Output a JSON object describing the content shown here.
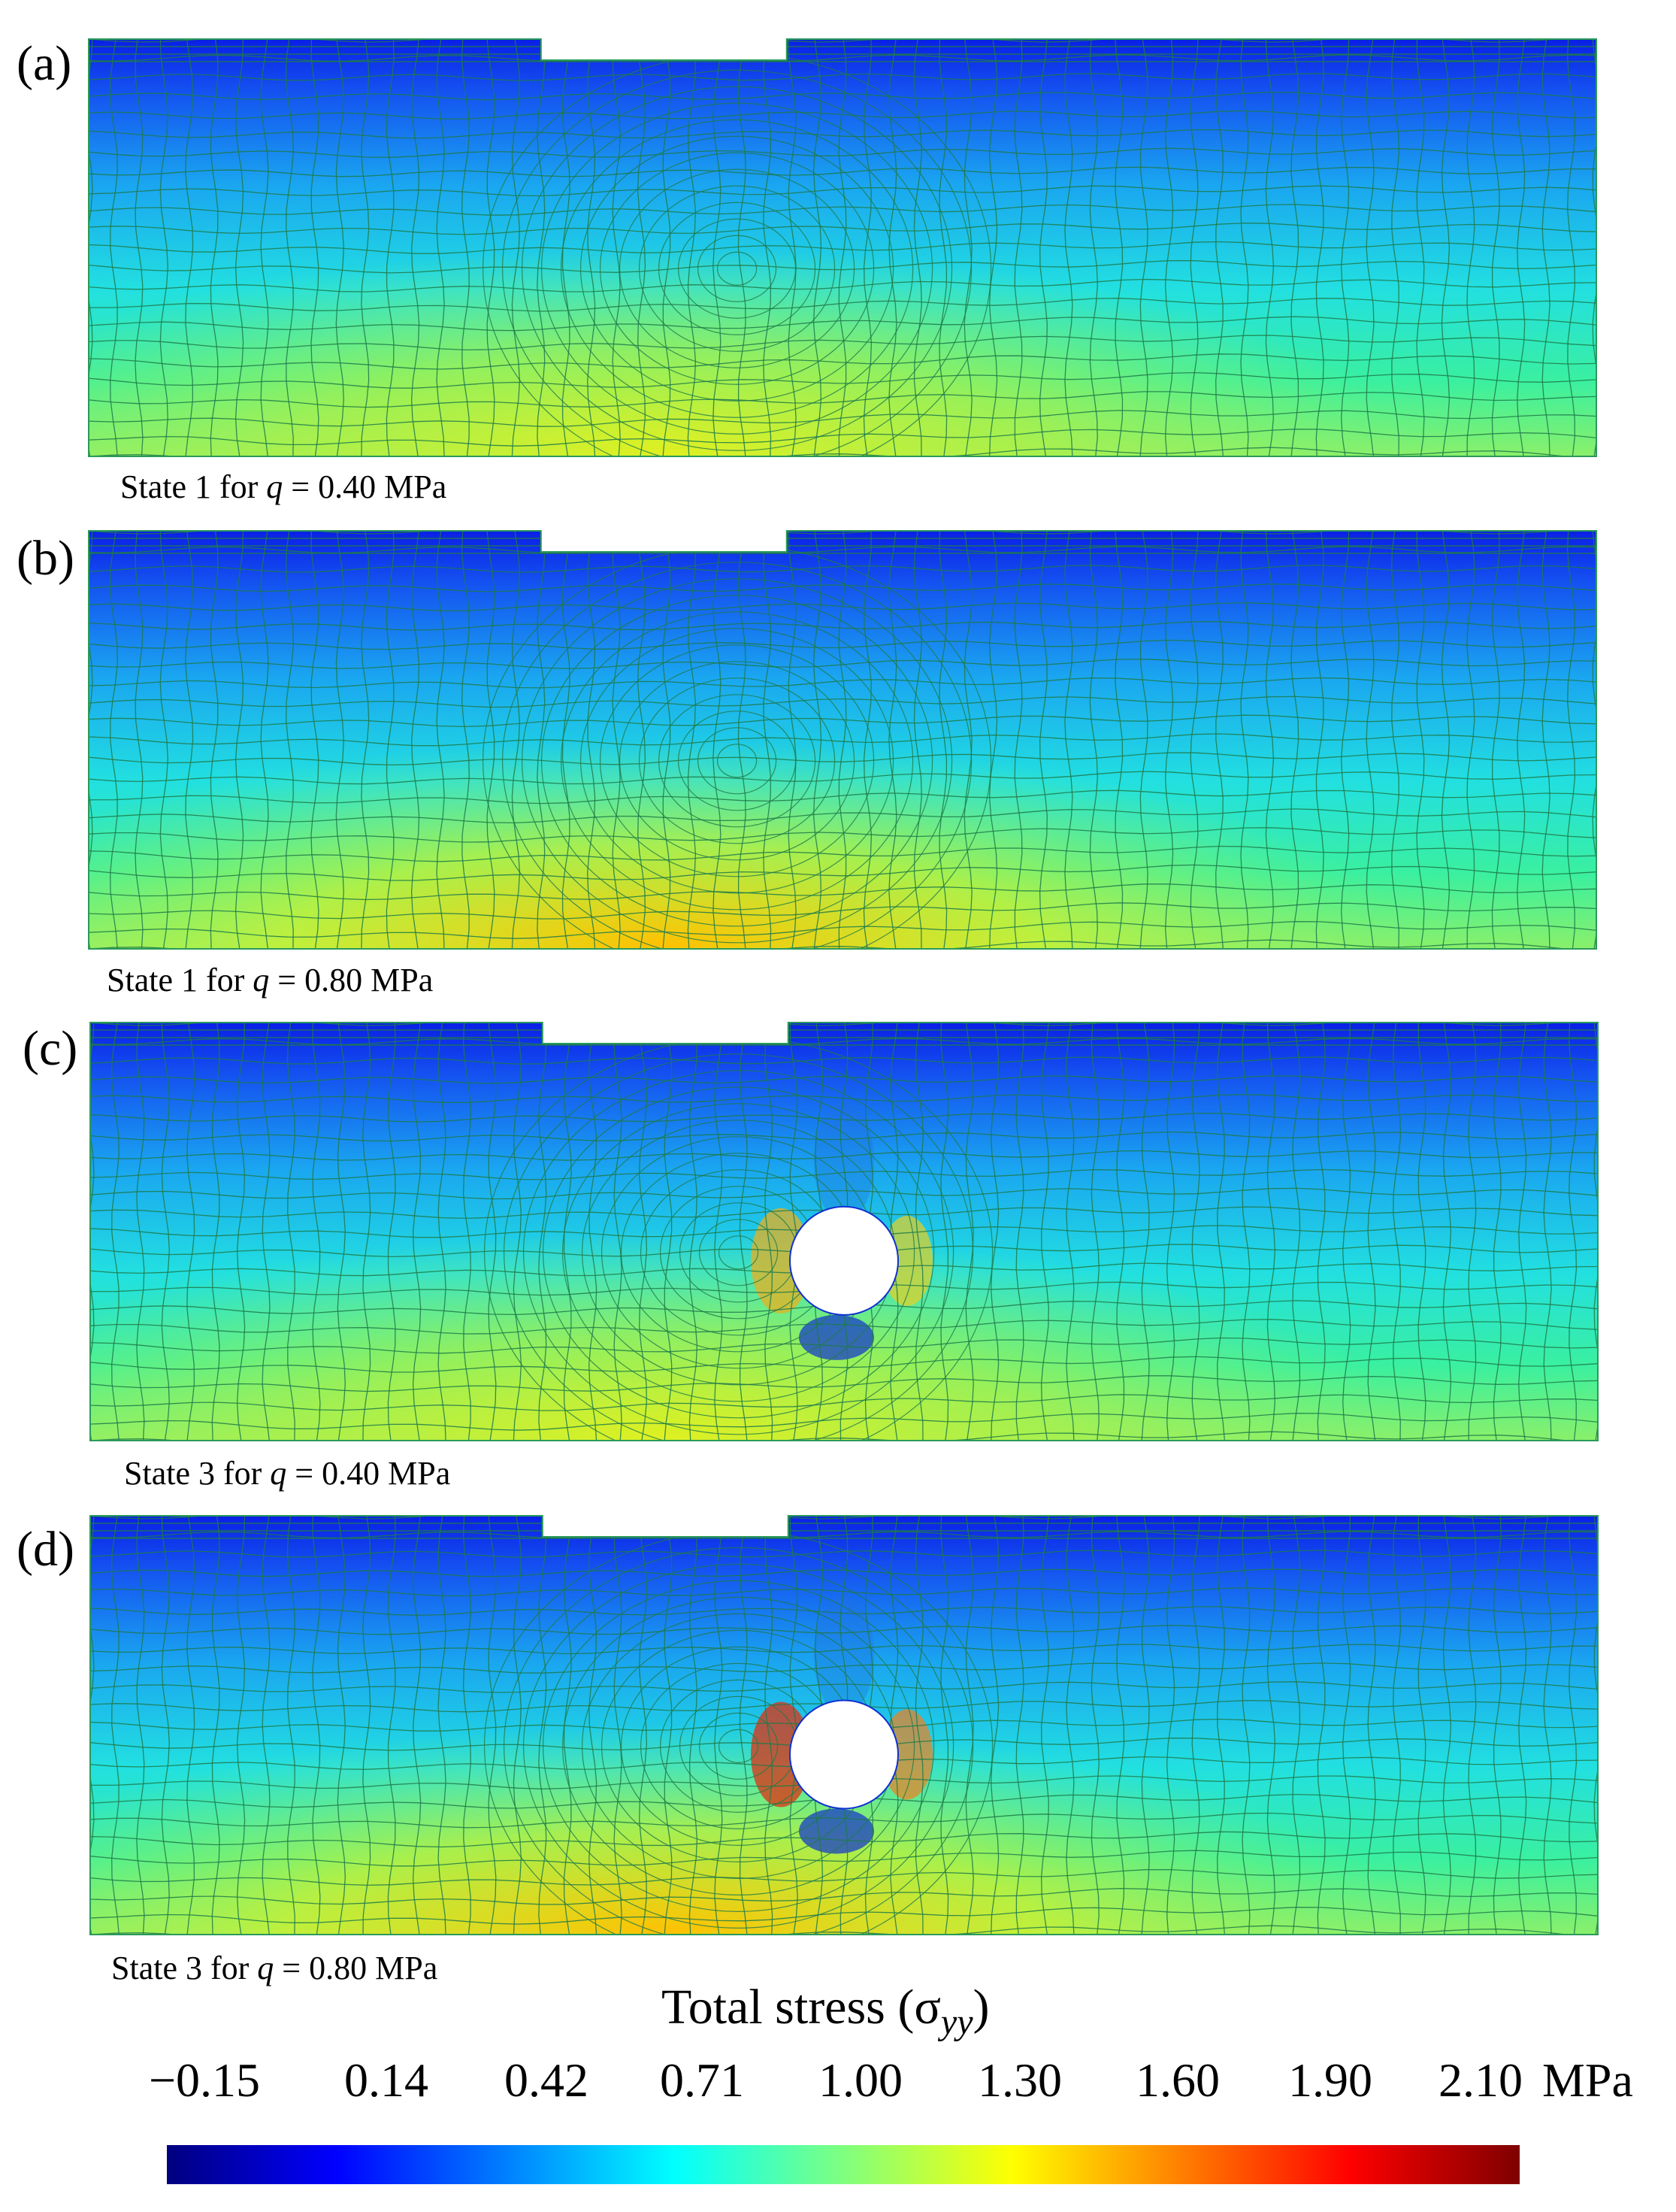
{
  "panels": [
    {
      "letter": "(a)",
      "caption_prefix": "State 1 for ",
      "caption_var": "q",
      "caption_suffix": " = 0.40 MPa",
      "has_hole": false,
      "load": 0.4
    },
    {
      "letter": "(b)",
      "caption_prefix": "State 1 for ",
      "caption_var": "q",
      "caption_suffix": " = 0.80 MPa",
      "has_hole": false,
      "load": 0.8
    },
    {
      "letter": "(c)",
      "caption_prefix": "State 3 for ",
      "caption_var": "q",
      "caption_suffix": " = 0.40 MPa",
      "has_hole": true,
      "load": 0.4
    },
    {
      "letter": "(d)",
      "caption_prefix": "State 3 for ",
      "caption_var": "q",
      "caption_suffix": " = 0.80 MPa",
      "has_hole": true,
      "load": 0.8
    }
  ],
  "colorbar": {
    "title": "Total stress (σ",
    "title_sub": "yy",
    "title_close": ")",
    "ticks": [
      "−0.15",
      "0.14",
      "0.42",
      "0.71",
      "1.00",
      "1.30",
      "1.60",
      "1.90",
      "2.10"
    ],
    "unit": "MPa",
    "colors": [
      "#00007f",
      "#0000ff",
      "#007fff",
      "#00ffff",
      "#7fff7f",
      "#ffff00",
      "#ff7f00",
      "#ff0000",
      "#7f0000"
    ]
  },
  "mesh_line_color": "#1f7a4a"
}
